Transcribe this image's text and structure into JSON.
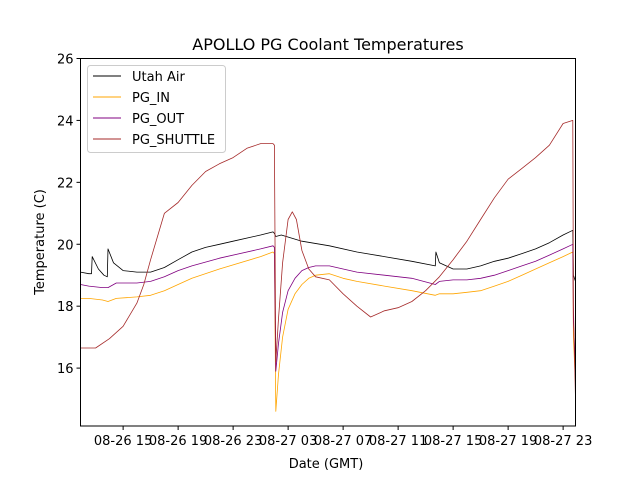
{
  "chart_data": {
    "type": "line",
    "title": "APOLLO PG Coolant Temperatures",
    "xlabel": "Date (GMT)",
    "ylabel": "Temperature (C)",
    "x_unit": "hours since 08-26 00:00",
    "xlim": [
      11.9,
      47.9
    ],
    "ylim": [
      14.13,
      26
    ],
    "yticks": [
      16,
      18,
      20,
      22,
      24,
      26
    ],
    "xticks": [
      {
        "value": 15,
        "label": "08-26 15"
      },
      {
        "value": 19,
        "label": "08-26 19"
      },
      {
        "value": 23,
        "label": "08-26 23"
      },
      {
        "value": 27,
        "label": "08-27 03"
      },
      {
        "value": 31,
        "label": "08-27 07"
      },
      {
        "value": 35,
        "label": "08-27 11"
      },
      {
        "value": 39,
        "label": "08-27 15"
      },
      {
        "value": 43,
        "label": "08-27 19"
      },
      {
        "value": 47,
        "label": "08-27 23"
      }
    ],
    "grid": false,
    "legend": {
      "placement": "top-left",
      "entries": [
        "Utah Air",
        "PG_IN",
        "PG_OUT",
        "PG_SHUTTLE"
      ]
    },
    "series": [
      {
        "name": "Utah Air",
        "color": "#000000",
        "x": [
          11.9,
          12.5,
          12.7,
          12.75,
          13.2,
          13.6,
          13.85,
          13.9,
          14.3,
          15.0,
          16.0,
          17.0,
          18.0,
          19.0,
          20.0,
          21.0,
          22.0,
          23.0,
          25.0,
          25.9,
          26.0,
          26.1,
          26.5,
          28.0,
          30.0,
          32.0,
          34.0,
          36.0,
          37.7,
          37.75,
          38.0,
          39.0,
          40.0,
          41.0,
          42.0,
          43.0,
          44.0,
          45.0,
          46.0,
          47.0,
          47.7,
          47.75,
          47.9
        ],
        "y": [
          19.1,
          19.05,
          19.05,
          19.6,
          19.2,
          19.0,
          18.95,
          19.85,
          19.4,
          19.15,
          19.1,
          19.1,
          19.25,
          19.5,
          19.75,
          19.9,
          20.0,
          20.1,
          20.3,
          20.4,
          20.35,
          20.25,
          20.3,
          20.1,
          19.95,
          19.75,
          19.6,
          19.45,
          19.3,
          19.75,
          19.4,
          19.2,
          19.2,
          19.3,
          19.45,
          19.55,
          19.7,
          19.85,
          20.05,
          20.3,
          20.45,
          19.0,
          18.8
        ]
      },
      {
        "name": "PG_IN",
        "color": "#ffa500",
        "x": [
          11.9,
          12.5,
          13.5,
          13.9,
          14.5,
          16.0,
          17.0,
          18.0,
          19.0,
          20.0,
          22.0,
          25.0,
          25.9,
          26.0,
          26.1,
          26.3,
          26.6,
          27.0,
          27.5,
          28.0,
          28.5,
          29.0,
          30.0,
          31.0,
          32.0,
          34.0,
          36.0,
          37.7,
          38.0,
          39.0,
          40.0,
          41.0,
          42.0,
          43.0,
          44.0,
          45.0,
          46.0,
          47.0,
          47.7,
          47.75,
          47.9
        ],
        "y": [
          18.25,
          18.25,
          18.2,
          18.15,
          18.25,
          18.3,
          18.35,
          18.5,
          18.7,
          18.9,
          19.2,
          19.6,
          19.75,
          19.7,
          14.6,
          15.8,
          17.0,
          17.9,
          18.4,
          18.7,
          18.9,
          19.0,
          19.05,
          18.9,
          18.8,
          18.65,
          18.5,
          18.35,
          18.4,
          18.4,
          18.45,
          18.5,
          18.65,
          18.8,
          19.0,
          19.2,
          19.4,
          19.6,
          19.75,
          17.0,
          15.5
        ]
      },
      {
        "name": "PG_OUT",
        "color": "#800080",
        "x": [
          11.9,
          12.5,
          13.5,
          13.9,
          14.5,
          16.0,
          17.0,
          18.0,
          19.0,
          20.0,
          22.0,
          25.0,
          25.9,
          26.0,
          26.1,
          26.3,
          26.6,
          27.0,
          27.5,
          28.0,
          28.5,
          29.0,
          30.0,
          31.0,
          32.0,
          34.0,
          36.0,
          37.7,
          38.0,
          39.0,
          40.0,
          41.0,
          42.0,
          43.0,
          44.0,
          45.0,
          46.0,
          47.0,
          47.7,
          47.75,
          47.9
        ],
        "y": [
          18.7,
          18.65,
          18.6,
          18.6,
          18.75,
          18.75,
          18.8,
          18.95,
          19.15,
          19.3,
          19.55,
          19.85,
          19.95,
          19.9,
          15.9,
          16.8,
          17.8,
          18.5,
          18.9,
          19.15,
          19.25,
          19.3,
          19.3,
          19.2,
          19.1,
          19.0,
          18.9,
          18.7,
          18.8,
          18.85,
          18.85,
          18.9,
          19.0,
          19.15,
          19.3,
          19.45,
          19.65,
          19.85,
          20.0,
          17.5,
          16.0
        ]
      },
      {
        "name": "PG_SHUTTLE",
        "color": "#a52a2a",
        "x": [
          11.9,
          13.0,
          14.0,
          15.0,
          16.0,
          16.5,
          17.0,
          18.0,
          19.0,
          20.0,
          21.0,
          22.0,
          23.0,
          24.0,
          25.0,
          25.9,
          26.0,
          26.1,
          26.3,
          26.6,
          27.0,
          27.3,
          27.6,
          28.0,
          28.5,
          29.0,
          30.0,
          31.0,
          32.0,
          33.0,
          34.0,
          35.0,
          36.0,
          37.0,
          38.0,
          39.0,
          40.0,
          41.0,
          42.0,
          43.0,
          44.0,
          45.0,
          46.0,
          47.0,
          47.7,
          47.75,
          47.9
        ],
        "y": [
          16.65,
          16.65,
          16.95,
          17.35,
          18.1,
          18.7,
          19.5,
          21.0,
          21.35,
          21.9,
          22.35,
          22.6,
          22.8,
          23.1,
          23.25,
          23.25,
          23.2,
          16.2,
          17.6,
          19.4,
          20.8,
          21.05,
          20.8,
          19.8,
          19.2,
          18.95,
          18.85,
          18.4,
          18.0,
          17.65,
          17.85,
          17.95,
          18.15,
          18.5,
          18.95,
          19.5,
          20.1,
          20.8,
          21.5,
          22.1,
          22.45,
          22.8,
          23.2,
          23.9,
          24.0,
          18.0,
          15.0
        ]
      }
    ]
  }
}
